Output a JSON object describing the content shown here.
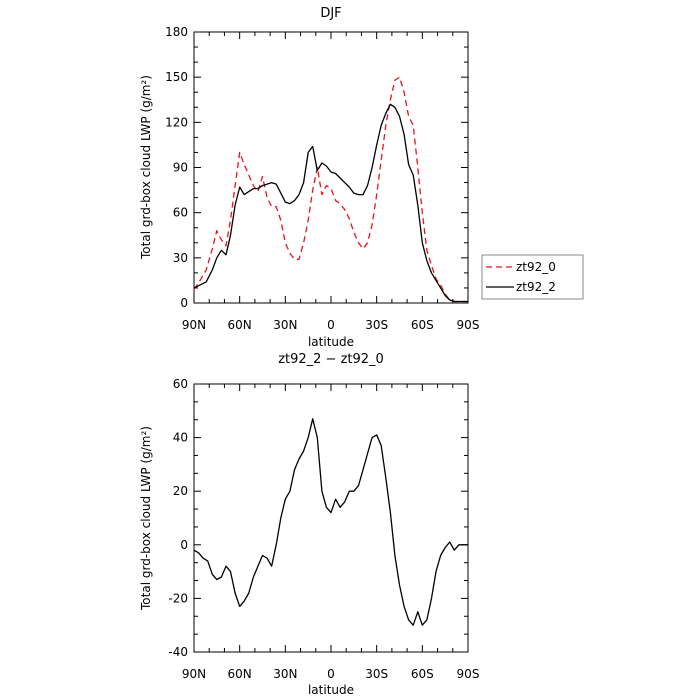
{
  "chart_data": [
    {
      "type": "line",
      "title": "DJF",
      "xlabel": "latitude",
      "ylabel": "Total grd-box cloud LWP (g/m²)",
      "x_tick_labels": [
        "90N",
        "60N",
        "30N",
        "0",
        "30S",
        "60S",
        "90S"
      ],
      "x_tick_values": [
        90,
        60,
        30,
        0,
        -30,
        -60,
        -90
      ],
      "xlim": [
        90,
        -90
      ],
      "ylim": [
        0,
        180
      ],
      "y_ticks": [
        0,
        30,
        60,
        90,
        120,
        150,
        180
      ],
      "legend_position": "right-outside",
      "series": [
        {
          "name": "zt92_0",
          "style": "dashed",
          "color": "#e8141c",
          "x": [
            90,
            86,
            82,
            78,
            75,
            72,
            69,
            66,
            63,
            60,
            57,
            54,
            51,
            48,
            45,
            42,
            39,
            36,
            33,
            30,
            27,
            24,
            21,
            18,
            15,
            12,
            9,
            6,
            3,
            0,
            -3,
            -6,
            -9,
            -12,
            -15,
            -18,
            -21,
            -24,
            -27,
            -30,
            -33,
            -36,
            -39,
            -42,
            -45,
            -48,
            -51,
            -54,
            -57,
            -60,
            -63,
            -66,
            -69,
            -72,
            -75,
            -78,
            -81,
            -84,
            -87,
            -90
          ],
          "values": [
            9,
            15,
            22,
            36,
            48,
            42,
            38,
            55,
            78,
            100,
            92,
            85,
            78,
            74,
            84,
            70,
            64,
            64,
            55,
            40,
            33,
            29,
            29,
            40,
            55,
            75,
            90,
            72,
            78,
            76,
            68,
            66,
            62,
            56,
            47,
            40,
            36,
            40,
            52,
            72,
            95,
            118,
            135,
            148,
            150,
            140,
            124,
            118,
            90,
            60,
            35,
            25,
            16,
            12,
            6,
            2,
            1,
            1,
            1,
            1
          ]
        },
        {
          "name": "zt92_2",
          "style": "solid",
          "color": "#000000",
          "x": [
            90,
            86,
            82,
            78,
            75,
            72,
            69,
            66,
            63,
            60,
            57,
            54,
            51,
            48,
            45,
            42,
            39,
            36,
            33,
            30,
            27,
            24,
            21,
            18,
            15,
            12,
            9,
            6,
            3,
            0,
            -3,
            -6,
            -9,
            -12,
            -15,
            -18,
            -21,
            -24,
            -27,
            -30,
            -33,
            -36,
            -39,
            -42,
            -45,
            -48,
            -51,
            -54,
            -57,
            -60,
            -63,
            -66,
            -69,
            -72,
            -75,
            -78,
            -81,
            -84,
            -87,
            -90
          ],
          "values": [
            10,
            12,
            14,
            22,
            30,
            35,
            32,
            45,
            65,
            77,
            72,
            74,
            76,
            76,
            78,
            79,
            80,
            79,
            73,
            67,
            66,
            68,
            72,
            80,
            100,
            104,
            88,
            93,
            91,
            87,
            86,
            83,
            80,
            77,
            73,
            72,
            72,
            78,
            90,
            105,
            118,
            126,
            132,
            130,
            124,
            112,
            92,
            85,
            65,
            40,
            28,
            20,
            15,
            10,
            5,
            2,
            1,
            1,
            1,
            1
          ]
        }
      ]
    },
    {
      "type": "line",
      "title": "zt92_2 − zt92_0",
      "xlabel": "latitude",
      "ylabel": "Total grd-box cloud LWP (g/m²)",
      "x_tick_labels": [
        "90N",
        "60N",
        "30N",
        "0",
        "30S",
        "60S",
        "90S"
      ],
      "x_tick_values": [
        90,
        60,
        30,
        0,
        -30,
        -60,
        -90
      ],
      "xlim": [
        90,
        -90
      ],
      "ylim": [
        -40,
        60
      ],
      "y_ticks": [
        -40,
        -20,
        0,
        20,
        40,
        60
      ],
      "series": [
        {
          "style": "solid",
          "color": "#000000",
          "x": [
            90,
            87,
            84,
            81,
            78,
            75,
            72,
            69,
            66,
            63,
            60,
            57,
            54,
            51,
            48,
            45,
            42,
            39,
            36,
            33,
            30,
            27,
            24,
            21,
            18,
            15,
            12,
            9,
            6,
            3,
            0,
            -3,
            -6,
            -9,
            -12,
            -15,
            -18,
            -21,
            -24,
            -27,
            -30,
            -33,
            -36,
            -39,
            -42,
            -45,
            -48,
            -51,
            -54,
            -57,
            -60,
            -63,
            -66,
            -69,
            -72,
            -75,
            -78,
            -81,
            -84,
            -87,
            -90
          ],
          "values": [
            -2,
            -3,
            -5,
            -6,
            -11,
            -13,
            -12,
            -8,
            -10,
            -18,
            -23,
            -21,
            -18,
            -12,
            -8,
            -4,
            -5,
            -8,
            0,
            10,
            17,
            20,
            28,
            32,
            35,
            40,
            47,
            40,
            20,
            14,
            12,
            17,
            14,
            16,
            20,
            20,
            22,
            28,
            34,
            40,
            41,
            37,
            25,
            12,
            -4,
            -15,
            -23,
            -28,
            -30,
            -25,
            -30,
            -28,
            -20,
            -10,
            -4,
            -1,
            1,
            -2,
            0,
            0,
            0
          ]
        }
      ]
    }
  ]
}
